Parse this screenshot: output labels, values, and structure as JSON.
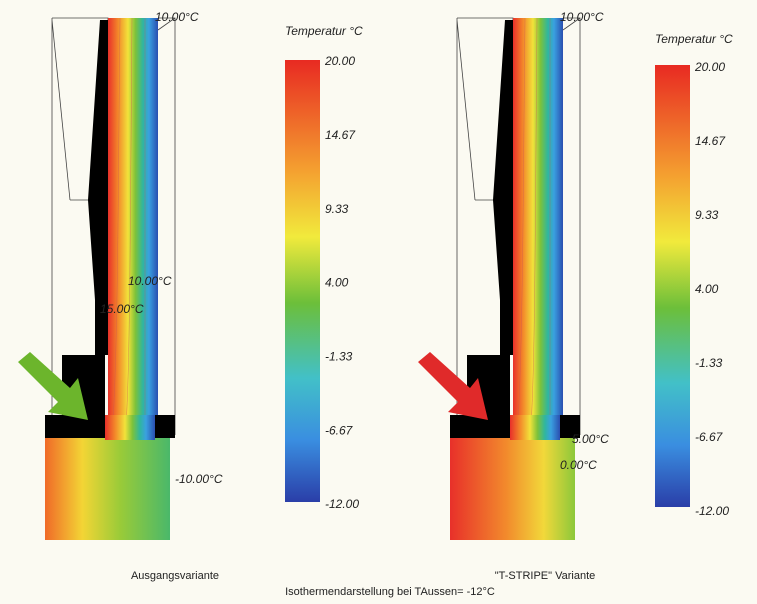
{
  "panels": [
    {
      "title": "Temperatur °C",
      "scale": [
        "20.00",
        "14.67",
        "9.33",
        "4.00",
        "-1.33",
        "-6.67",
        "-12.00"
      ],
      "isotherms": [
        "10.00°C",
        "10.00°C",
        "15.00°C",
        "-10.00°C"
      ],
      "caption": "Ausgangsvariante"
    },
    {
      "title": "Temperatur °C",
      "scale": [
        "20.00",
        "14.67",
        "9.33",
        "4.00",
        "-1.33",
        "-6.67",
        "-12.00"
      ],
      "isotherms": [
        "10.00°C",
        "5.00°C",
        "0.00°C"
      ],
      "caption": "\"T-STRIPE\" Variante"
    }
  ],
  "footer": "Isothermendarstellung bei TAussen= -12°C"
}
